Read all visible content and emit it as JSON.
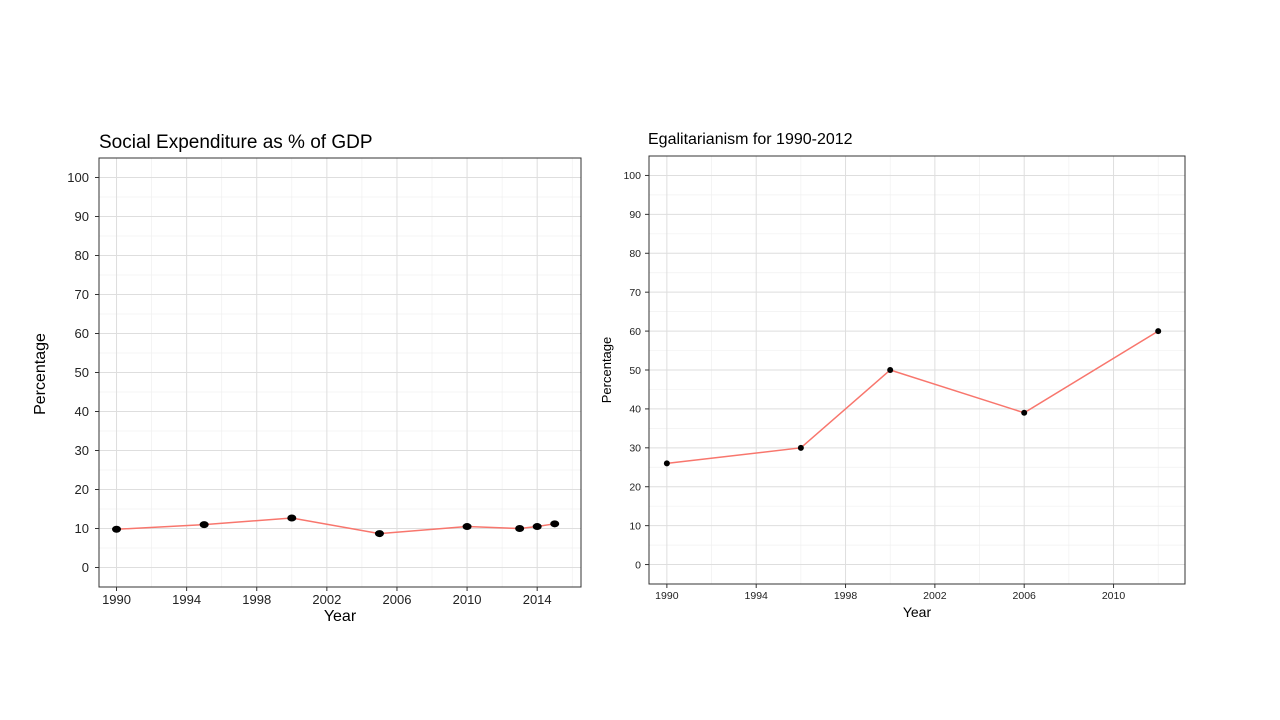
{
  "chart_data": [
    {
      "type": "line",
      "title": "Social Expenditure as % of GDP",
      "xlabel": "Year",
      "ylabel": "Percentage",
      "x": [
        1990,
        1995,
        2000,
        2005,
        2010,
        2013,
        2014,
        2015
      ],
      "values": [
        9.8,
        11.0,
        12.7,
        8.7,
        10.5,
        10.0,
        10.5,
        11.2
      ],
      "xlim": [
        1989,
        2016.5
      ],
      "ylim": [
        -5,
        105
      ],
      "xticks": [
        "1990",
        "1994",
        "1998",
        "2002",
        "2006",
        "2010",
        "2014"
      ],
      "yticks": [
        "0",
        "10",
        "20",
        "30",
        "40",
        "50",
        "60",
        "70",
        "80",
        "90",
        "100"
      ],
      "grid": true,
      "line_color": "#f8766d",
      "point_color": "#000000"
    },
    {
      "type": "line",
      "title": "Egalitarianism for 1990-2012",
      "xlabel": "Year",
      "ylabel": "Percentage",
      "x": [
        1990,
        1996,
        2000,
        2006,
        2012
      ],
      "values": [
        26,
        30,
        50,
        39,
        60
      ],
      "xlim": [
        1989.2,
        2013.2
      ],
      "ylim": [
        -5,
        105
      ],
      "xticks": [
        "1990",
        "1994",
        "1998",
        "2002",
        "2006",
        "2010"
      ],
      "yticks": [
        "0",
        "10",
        "20",
        "30",
        "40",
        "50",
        "60",
        "70",
        "80",
        "90",
        "100"
      ],
      "grid": true,
      "line_color": "#f8766d",
      "point_color": "#000000"
    }
  ]
}
